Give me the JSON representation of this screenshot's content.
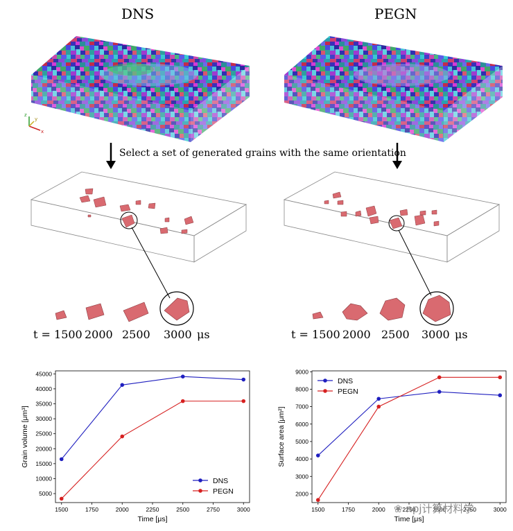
{
  "titles": {
    "left": "DNS",
    "right": "PEGN"
  },
  "caption": "Select a set of generated grains with the same orientation",
  "axes_triad": {
    "x": "x",
    "y": "y",
    "z": "z"
  },
  "time_row": {
    "prefix": "t = 1500",
    "times": [
      "2000",
      "2500",
      "3000"
    ],
    "unit": "μs"
  },
  "colors": {
    "dns": "#1f1fbf",
    "pegn": "#d62020",
    "grain": "#d96a70"
  },
  "chart_data": [
    {
      "type": "line",
      "x": [
        1500,
        2000,
        2500,
        3000
      ],
      "xticks": [
        "1500",
        "1750",
        "2000",
        "2250",
        "2500",
        "2750",
        "3000"
      ],
      "yticks": [
        "5000",
        "10000",
        "15000",
        "20000",
        "25000",
        "30000",
        "35000",
        "40000",
        "45000"
      ],
      "xlabel": "Time [μs]",
      "ylabel": "Grain volume [μm³]",
      "xlim": [
        1450,
        3050
      ],
      "ylim": [
        2000,
        46000
      ],
      "legend_position": "bottom-right",
      "series": [
        {
          "name": "DNS",
          "values": [
            16500,
            41300,
            44100,
            43100
          ]
        },
        {
          "name": "PEGN",
          "values": [
            3300,
            24100,
            35900,
            35900
          ]
        }
      ]
    },
    {
      "type": "line",
      "x": [
        1500,
        2000,
        2500,
        3000
      ],
      "xticks": [
        "1500",
        "1750",
        "2000",
        "2250",
        "2500",
        "2750",
        "3000"
      ],
      "yticks": [
        "2000",
        "3000",
        "4000",
        "5000",
        "6000",
        "7000",
        "8000",
        "9000"
      ],
      "xlabel": "Time [μs]",
      "ylabel": "Surface area [μm²]",
      "xlim": [
        1450,
        3050
      ],
      "ylim": [
        1500,
        9050
      ],
      "legend_position": "top-left",
      "series": [
        {
          "name": "DNS",
          "values": [
            4200,
            7450,
            7850,
            7650
          ]
        },
        {
          "name": "PEGN",
          "values": [
            1650,
            7000,
            8680,
            8680
          ]
        }
      ]
    }
  ],
  "watermark": "npj计算材料学"
}
